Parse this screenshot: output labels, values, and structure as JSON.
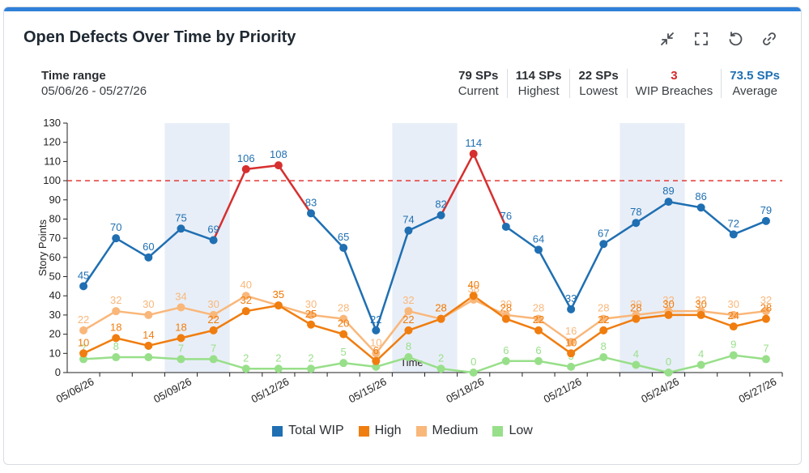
{
  "header": {
    "title": "Open Defects Over Time by Priority"
  },
  "toolbar": [
    {
      "name": "collapse-icon",
      "label": "collapse"
    },
    {
      "name": "fullscreen-icon",
      "label": "fullscreen"
    },
    {
      "name": "reset-icon",
      "label": "reset"
    },
    {
      "name": "link-icon",
      "label": "link"
    }
  ],
  "time_range": {
    "label": "Time range",
    "value": "05/06/26 - 05/27/26"
  },
  "stats": {
    "current": {
      "value": "79 SPs",
      "label": "Current"
    },
    "highest": {
      "value": "114 SPs",
      "label": "Highest"
    },
    "lowest": {
      "value": "22 SPs",
      "label": "Lowest"
    },
    "breaches": {
      "value": "3",
      "label": "WIP Breaches"
    },
    "average": {
      "value": "73.5 SPs",
      "label": "Average"
    }
  },
  "colors": {
    "total": "#1f6fb2",
    "high": "#f07d0f",
    "medium": "#f9b77a",
    "low": "#98df8a",
    "breach": "#d62f2f",
    "threshold": "#e53935",
    "band": "#e8eef7"
  },
  "chart_data": {
    "type": "line",
    "ylabel": "Story Points",
    "xlabel": "Time",
    "ylim": [
      0,
      130
    ],
    "yticks": [
      0,
      10,
      20,
      30,
      40,
      50,
      60,
      70,
      80,
      90,
      100,
      110,
      120,
      130
    ],
    "x": [
      "05/06/26",
      "05/07/26",
      "05/08/26",
      "05/09/26",
      "05/10/26",
      "05/11/26",
      "05/12/26",
      "05/13/26",
      "05/14/26",
      "05/15/26",
      "05/16/26",
      "05/17/26",
      "05/18/26",
      "05/19/26",
      "05/20/26",
      "05/21/26",
      "05/22/26",
      "05/23/26",
      "05/24/26",
      "05/25/26",
      "05/26/26",
      "05/27/26"
    ],
    "xtick_labels": [
      "05/06/26",
      "05/09/26",
      "05/12/26",
      "05/15/26",
      "05/18/26",
      "05/21/26",
      "05/24/26",
      "05/27/26"
    ],
    "threshold": 100,
    "weekend_bands": [
      [
        "05/09/26",
        "05/10/26"
      ],
      [
        "05/16/26",
        "05/17/26"
      ],
      [
        "05/23/26",
        "05/24/26"
      ]
    ],
    "series": [
      {
        "name": "Total WIP",
        "color_key": "total",
        "values": [
          45,
          70,
          60,
          75,
          69,
          106,
          108,
          83,
          65,
          22,
          74,
          82,
          114,
          76,
          64,
          33,
          67,
          78,
          89,
          86,
          72,
          79
        ]
      },
      {
        "name": "High",
        "color_key": "high",
        "values": [
          10,
          18,
          14,
          18,
          22,
          32,
          35,
          25,
          20,
          6,
          22,
          28,
          40,
          28,
          22,
          10,
          22,
          28,
          30,
          30,
          24,
          28
        ]
      },
      {
        "name": "Medium",
        "color_key": "medium",
        "values": [
          22,
          32,
          30,
          34,
          30,
          40,
          35,
          30,
          28,
          10,
          32,
          28,
          38,
          30,
          28,
          16,
          28,
          30,
          32,
          32,
          30,
          32
        ]
      },
      {
        "name": "Low",
        "color_key": "low",
        "values": [
          7,
          8,
          8,
          7,
          7,
          2,
          2,
          2,
          5,
          3,
          8,
          2,
          0,
          6,
          6,
          3,
          8,
          4,
          0,
          4,
          9,
          7
        ]
      }
    ],
    "legend_position": "bottom"
  }
}
